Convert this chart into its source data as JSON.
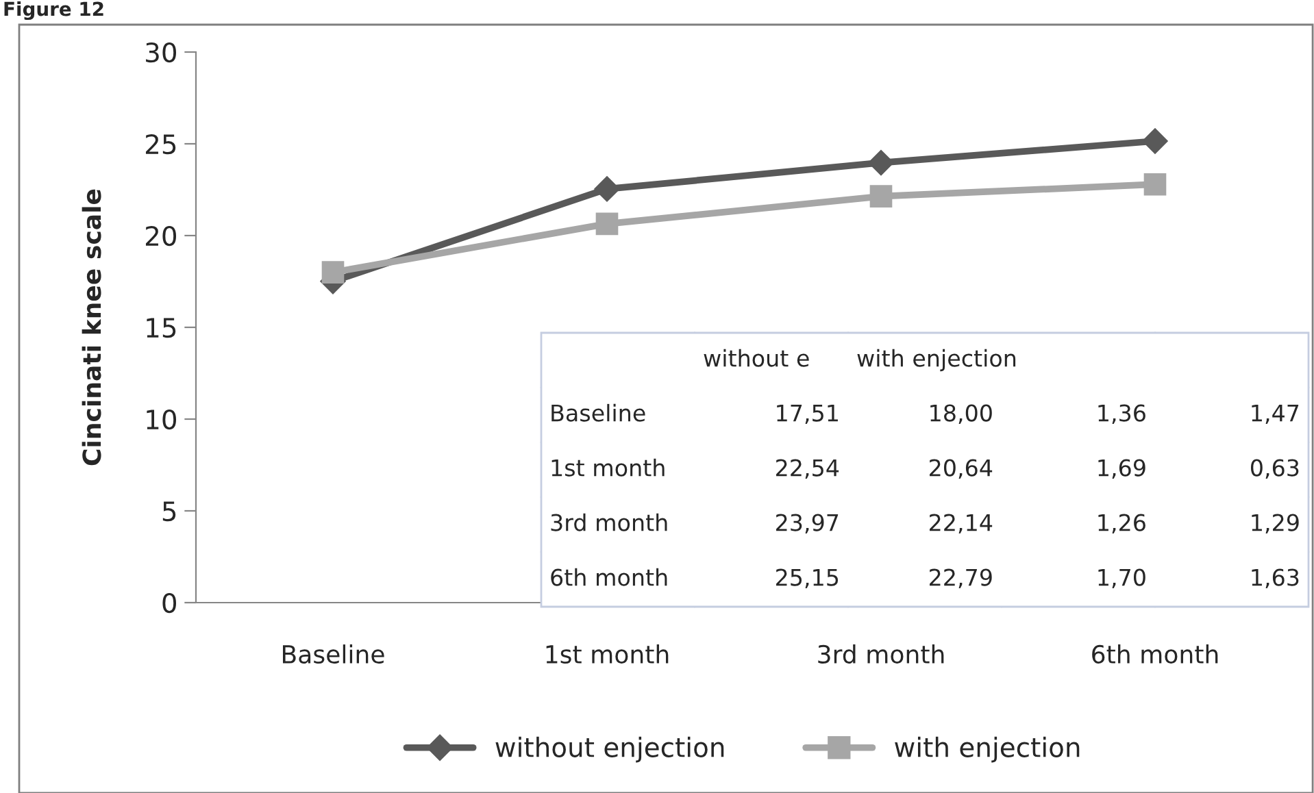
{
  "chart_data": {
    "type": "line",
    "title": "Figure 12",
    "ylabel": "Cincinati knee scale",
    "categories": [
      "Baseline",
      "1st month",
      "3rd month",
      "6th month"
    ],
    "series": [
      {
        "name": "without enjection",
        "color": "#595959",
        "marker": "diamond",
        "values": [
          17.51,
          22.54,
          23.97,
          25.15
        ]
      },
      {
        "name": "with enjection",
        "color": "#a6a6a6",
        "marker": "square",
        "values": [
          18.0,
          20.64,
          22.14,
          22.79
        ]
      }
    ],
    "ylim": [
      0,
      30
    ],
    "yticks": [
      0,
      5,
      10,
      15,
      20,
      25,
      30
    ],
    "grid": false,
    "legend": "bottom",
    "annotations": [
      "without e",
      "with enjection",
      "Baseline",
      "17,51",
      "18,00",
      "1,36",
      "1,47",
      "1st month",
      "22,54",
      "20,64",
      "1,69",
      "0,63",
      "3rd month",
      "23,97",
      "22,14",
      "1,26",
      "1,29",
      "6th month",
      "25,15",
      "22,79",
      "1,70",
      "1,63"
    ]
  }
}
